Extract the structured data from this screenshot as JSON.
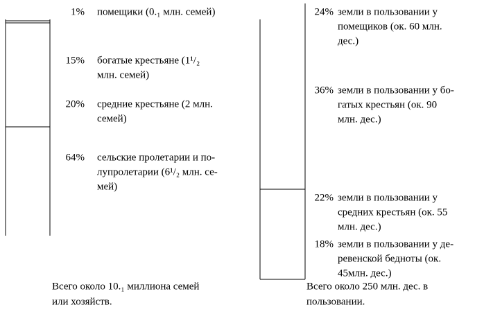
{
  "left": {
    "rows": [
      {
        "percent": "1%",
        "lines": [
          "помещики (0.₁ млн. семей)"
        ]
      },
      {
        "percent": "15%",
        "lines": [
          "богатые крестьяне (1¹/₂",
          "млн. семей)"
        ]
      },
      {
        "percent": "20%",
        "lines": [
          "средние крестьяне (2 млн.",
          "семей)"
        ]
      },
      {
        "percent": "64%",
        "lines": [
          "сельские пролетарии и по-",
          "лупролетарии (6¹/₂ млн. се-",
          "мей)"
        ]
      }
    ],
    "total": [
      "Всего около 10.₁ миллиона семей",
      "или хозяйств."
    ]
  },
  "right": {
    "rows": [
      {
        "percent": "24%",
        "lines": [
          "земли в пользовании у",
          "помещиков (ок. 60 млн.",
          "дес.)"
        ]
      },
      {
        "percent": "36%",
        "lines": [
          "земли в пользовании у бо-",
          "гатых крестьян (ок. 90",
          "млн. дес.)"
        ]
      },
      {
        "percent": "22%",
        "lines": [
          "земли в пользовании у",
          "средних крестьян (ок. 55",
          "млн. дес.)"
        ]
      },
      {
        "percent": "18%",
        "lines": [
          "земли в пользовании у де-",
          "ревенской бедноты (ок.",
          "45млн. дес.)"
        ]
      }
    ],
    "total": [
      "Всего около 250 млн. дес. в",
      "пользовании."
    ]
  }
}
